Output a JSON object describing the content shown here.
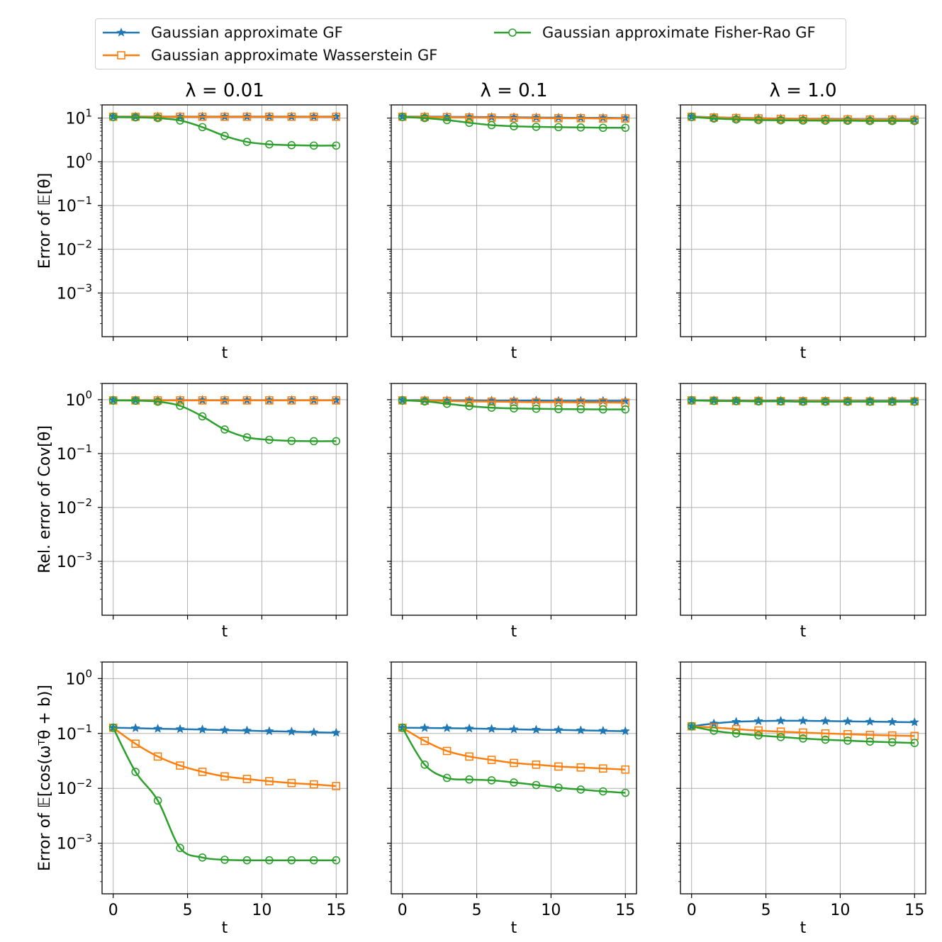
{
  "legend": {
    "entries": [
      {
        "label": "Gaussian approximate GF",
        "series": 0
      },
      {
        "label": "Gaussian approximate Wasserstein GF",
        "series": 1
      },
      {
        "label": "Gaussian approximate Fisher-Rao GF",
        "series": 2
      }
    ]
  },
  "series_styles": [
    {
      "name": "Gaussian approximate GF",
      "color": "#1f77b4",
      "marker": "star"
    },
    {
      "name": "Gaussian approximate Wasserstein GF",
      "color": "#ff7f0e",
      "marker": "square"
    },
    {
      "name": "Gaussian approximate Fisher-Rao GF",
      "color": "#2ca02c",
      "marker": "circle"
    }
  ],
  "column_titles": [
    "λ = 0.01",
    "λ = 0.1",
    "λ = 1.0"
  ],
  "row_labels": [
    "Error of 𝔼[θ]",
    "Rel. error of Cov[θ]",
    "Error of 𝔼[cos(ωᵀθ + b)]"
  ],
  "chart_data": [
    {
      "type": "line",
      "row": 0,
      "col": 0,
      "title": "λ = 0.01",
      "xlabel": "t",
      "ylabel": "Error of 𝔼[θ]",
      "yscale": "log",
      "xlim": [
        -0.75,
        15.75
      ],
      "ylim": [
        0.0001,
        20
      ],
      "grid": true,
      "x": [
        0,
        1.5,
        3,
        4.5,
        6,
        7.5,
        9,
        10.5,
        12,
        13.5,
        15
      ],
      "series": [
        {
          "name": "Gaussian approximate GF",
          "values": [
            10.8,
            10.8,
            10.8,
            10.8,
            10.8,
            10.8,
            10.8,
            10.8,
            10.8,
            10.8,
            10.8
          ]
        },
        {
          "name": "Gaussian approximate Wasserstein GF",
          "values": [
            10.7,
            10.7,
            10.7,
            10.7,
            10.7,
            10.7,
            10.7,
            10.7,
            10.7,
            10.7,
            10.7
          ]
        },
        {
          "name": "Gaussian approximate Fisher-Rao GF",
          "values": [
            10.6,
            10.4,
            10.0,
            8.8,
            6.2,
            3.9,
            2.85,
            2.5,
            2.4,
            2.35,
            2.35
          ]
        }
      ]
    },
    {
      "type": "line",
      "row": 0,
      "col": 1,
      "title": "λ = 0.1",
      "xlabel": "t",
      "ylabel": "",
      "yscale": "log",
      "xlim": [
        -0.75,
        15.75
      ],
      "ylim": [
        0.0001,
        20
      ],
      "grid": true,
      "x": [
        0,
        1.5,
        3,
        4.5,
        6,
        7.5,
        9,
        10.5,
        12,
        13.5,
        15
      ],
      "series": [
        {
          "name": "Gaussian approximate GF",
          "values": [
            10.8,
            10.8,
            10.7,
            10.6,
            10.5,
            10.4,
            10.3,
            10.2,
            10.1,
            10.1,
            10.0
          ]
        },
        {
          "name": "Gaussian approximate Wasserstein GF",
          "values": [
            10.7,
            10.6,
            10.5,
            10.3,
            10.2,
            10.1,
            10.0,
            9.9,
            9.9,
            9.8,
            9.8
          ]
        },
        {
          "name": "Gaussian approximate Fisher-Rao GF",
          "values": [
            10.6,
            10.0,
            9.0,
            7.8,
            6.9,
            6.5,
            6.3,
            6.2,
            6.1,
            6.0,
            6.0
          ]
        }
      ]
    },
    {
      "type": "line",
      "row": 0,
      "col": 2,
      "title": "λ = 1.0",
      "xlabel": "t",
      "ylabel": "",
      "yscale": "log",
      "xlim": [
        -0.75,
        15.75
      ],
      "ylim": [
        0.0001,
        20
      ],
      "grid": true,
      "x": [
        0,
        1.5,
        3,
        4.5,
        6,
        7.5,
        9,
        10.5,
        12,
        13.5,
        15
      ],
      "series": [
        {
          "name": "Gaussian approximate GF",
          "values": [
            10.8,
            10.4,
            10.1,
            9.9,
            9.7,
            9.6,
            9.5,
            9.4,
            9.3,
            9.3,
            9.2
          ]
        },
        {
          "name": "Gaussian approximate Wasserstein GF",
          "values": [
            10.7,
            10.3,
            10.0,
            9.8,
            9.6,
            9.5,
            9.4,
            9.3,
            9.2,
            9.2,
            9.1
          ]
        },
        {
          "name": "Gaussian approximate Fisher-Rao GF",
          "values": [
            10.6,
            9.8,
            9.3,
            9.0,
            8.9,
            8.8,
            8.7,
            8.7,
            8.6,
            8.6,
            8.6
          ]
        }
      ]
    },
    {
      "type": "line",
      "row": 1,
      "col": 0,
      "title": "",
      "xlabel": "t",
      "ylabel": "Rel. error of Cov[θ]",
      "yscale": "log",
      "xlim": [
        -0.75,
        15.75
      ],
      "ylim": [
        0.0001,
        2
      ],
      "grid": true,
      "x": [
        0,
        1.5,
        3,
        4.5,
        6,
        7.5,
        9,
        10.5,
        12,
        13.5,
        15
      ],
      "series": [
        {
          "name": "Gaussian approximate GF",
          "values": [
            0.98,
            0.98,
            0.98,
            0.98,
            0.98,
            0.98,
            0.98,
            0.98,
            0.98,
            0.98,
            0.98
          ]
        },
        {
          "name": "Gaussian approximate Wasserstein GF",
          "values": [
            0.97,
            0.97,
            0.97,
            0.97,
            0.97,
            0.97,
            0.97,
            0.97,
            0.97,
            0.97,
            0.97
          ]
        },
        {
          "name": "Gaussian approximate Fisher-Rao GF",
          "values": [
            0.97,
            0.96,
            0.92,
            0.77,
            0.49,
            0.28,
            0.2,
            0.18,
            0.172,
            0.17,
            0.17
          ]
        }
      ]
    },
    {
      "type": "line",
      "row": 1,
      "col": 1,
      "title": "",
      "xlabel": "t",
      "ylabel": "",
      "yscale": "log",
      "xlim": [
        -0.75,
        15.75
      ],
      "ylim": [
        0.0001,
        2
      ],
      "grid": true,
      "x": [
        0,
        1.5,
        3,
        4.5,
        6,
        7.5,
        9,
        10.5,
        12,
        13.5,
        15
      ],
      "series": [
        {
          "name": "Gaussian approximate GF",
          "values": [
            0.98,
            0.98,
            0.97,
            0.97,
            0.96,
            0.96,
            0.96,
            0.95,
            0.95,
            0.95,
            0.95
          ]
        },
        {
          "name": "Gaussian approximate Wasserstein GF",
          "values": [
            0.97,
            0.96,
            0.95,
            0.93,
            0.92,
            0.91,
            0.9,
            0.9,
            0.89,
            0.89,
            0.88
          ]
        },
        {
          "name": "Gaussian approximate Fisher-Rao GF",
          "values": [
            0.97,
            0.93,
            0.84,
            0.76,
            0.71,
            0.69,
            0.68,
            0.67,
            0.665,
            0.66,
            0.66
          ]
        }
      ]
    },
    {
      "type": "line",
      "row": 1,
      "col": 2,
      "title": "",
      "xlabel": "t",
      "ylabel": "",
      "yscale": "log",
      "xlim": [
        -0.75,
        15.75
      ],
      "ylim": [
        0.0001,
        2
      ],
      "grid": true,
      "x": [
        0,
        1.5,
        3,
        4.5,
        6,
        7.5,
        9,
        10.5,
        12,
        13.5,
        15
      ],
      "series": [
        {
          "name": "Gaussian approximate GF",
          "values": [
            0.98,
            0.97,
            0.96,
            0.96,
            0.96,
            0.95,
            0.95,
            0.95,
            0.95,
            0.95,
            0.95
          ]
        },
        {
          "name": "Gaussian approximate Wasserstein GF",
          "values": [
            0.97,
            0.96,
            0.95,
            0.95,
            0.94,
            0.94,
            0.94,
            0.94,
            0.93,
            0.93,
            0.93
          ]
        },
        {
          "name": "Gaussian approximate Fisher-Rao GF",
          "values": [
            0.97,
            0.95,
            0.94,
            0.93,
            0.93,
            0.92,
            0.92,
            0.92,
            0.92,
            0.92,
            0.92
          ]
        }
      ]
    },
    {
      "type": "line",
      "row": 2,
      "col": 0,
      "title": "",
      "xlabel": "t",
      "ylabel": "Error of 𝔼[cos(ωᵀθ + b)]",
      "yscale": "log",
      "xlim": [
        -0.75,
        15.75
      ],
      "ylim": [
        0.00012,
        2
      ],
      "grid": true,
      "x": [
        0,
        1.5,
        3,
        4.5,
        6,
        7.5,
        9,
        10.5,
        12,
        13.5,
        15
      ],
      "xticks": [
        0,
        5,
        10,
        15
      ],
      "series": [
        {
          "name": "Gaussian approximate GF",
          "values": [
            0.127,
            0.125,
            0.122,
            0.12,
            0.118,
            0.115,
            0.113,
            0.11,
            0.108,
            0.105,
            0.103
          ]
        },
        {
          "name": "Gaussian approximate Wasserstein GF",
          "values": [
            0.127,
            0.065,
            0.038,
            0.026,
            0.02,
            0.0165,
            0.0148,
            0.0135,
            0.0125,
            0.0118,
            0.011
          ]
        },
        {
          "name": "Gaussian approximate Fisher-Rao GF",
          "values": [
            0.127,
            0.02,
            0.006,
            0.00082,
            0.00055,
            0.0005,
            0.00049,
            0.00049,
            0.00049,
            0.00049,
            0.00049
          ]
        }
      ]
    },
    {
      "type": "line",
      "row": 2,
      "col": 1,
      "title": "",
      "xlabel": "t",
      "ylabel": "",
      "yscale": "log",
      "xlim": [
        -0.75,
        15.75
      ],
      "ylim": [
        0.00012,
        2
      ],
      "grid": true,
      "x": [
        0,
        1.5,
        3,
        4.5,
        6,
        7.5,
        9,
        10.5,
        12,
        13.5,
        15
      ],
      "xticks": [
        0,
        5,
        10,
        15
      ],
      "series": [
        {
          "name": "Gaussian approximate GF",
          "values": [
            0.127,
            0.126,
            0.125,
            0.123,
            0.121,
            0.119,
            0.117,
            0.116,
            0.114,
            0.112,
            0.11
          ]
        },
        {
          "name": "Gaussian approximate Wasserstein GF",
          "values": [
            0.127,
            0.073,
            0.048,
            0.038,
            0.033,
            0.029,
            0.027,
            0.025,
            0.024,
            0.023,
            0.022
          ]
        },
        {
          "name": "Gaussian approximate Fisher-Rao GF",
          "values": [
            0.127,
            0.027,
            0.0155,
            0.0145,
            0.014,
            0.0128,
            0.0115,
            0.0103,
            0.0095,
            0.0088,
            0.0083
          ]
        }
      ]
    },
    {
      "type": "line",
      "row": 2,
      "col": 2,
      "title": "",
      "xlabel": "t",
      "ylabel": "",
      "yscale": "log",
      "xlim": [
        -0.75,
        15.75
      ],
      "ylim": [
        0.00012,
        2
      ],
      "grid": true,
      "x": [
        0,
        1.5,
        3,
        4.5,
        6,
        7.5,
        9,
        10.5,
        12,
        13.5,
        15
      ],
      "xticks": [
        0,
        5,
        10,
        15
      ],
      "series": [
        {
          "name": "Gaussian approximate GF",
          "values": [
            0.135,
            0.152,
            0.163,
            0.168,
            0.17,
            0.17,
            0.168,
            0.166,
            0.164,
            0.162,
            0.16
          ]
        },
        {
          "name": "Gaussian approximate Wasserstein GF",
          "values": [
            0.135,
            0.128,
            0.12,
            0.113,
            0.108,
            0.104,
            0.1,
            0.097,
            0.094,
            0.092,
            0.09
          ]
        },
        {
          "name": "Gaussian approximate Fisher-Rao GF",
          "values": [
            0.135,
            0.112,
            0.1,
            0.092,
            0.086,
            0.081,
            0.077,
            0.074,
            0.071,
            0.069,
            0.067
          ]
        }
      ]
    }
  ]
}
